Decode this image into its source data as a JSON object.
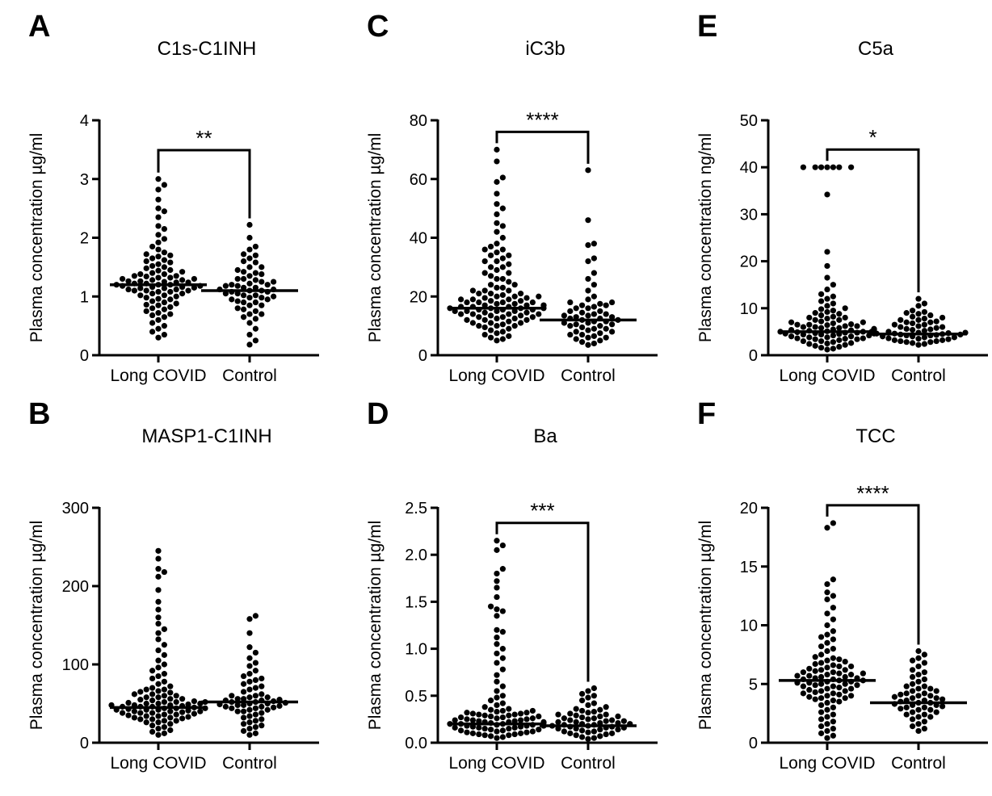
{
  "chart_data": [
    {
      "panel": "A",
      "type": "scatter",
      "title": "C1s-C1INH",
      "ylabel": "Plasma concentration µg/ml",
      "categories": [
        "Long COVID",
        "Control"
      ],
      "ylim": [
        0,
        4
      ],
      "yticks": [
        "0",
        "1",
        "2",
        "3",
        "4"
      ],
      "significance": "**",
      "series": [
        {
          "name": "Long COVID",
          "values": [
            3.0,
            2.9,
            2.82,
            2.65,
            2.5,
            2.45,
            2.35,
            2.2,
            2.15,
            2.05,
            1.98,
            1.92,
            1.85,
            1.8,
            1.72,
            1.68,
            1.62,
            1.58,
            1.52,
            1.48,
            1.45,
            1.42,
            1.38,
            1.35,
            1.32,
            1.3,
            1.28,
            1.26,
            1.24,
            1.22,
            1.2,
            1.18,
            1.16,
            1.14,
            1.12,
            1.1,
            1.08,
            1.05,
            1.02,
            1.0,
            0.98,
            0.95,
            0.92,
            0.9,
            0.88,
            0.85,
            0.82,
            0.78,
            0.75,
            0.7,
            0.65,
            0.6,
            0.55,
            0.5,
            0.45,
            0.4,
            0.35,
            0.3,
            1.2,
            1.25,
            1.3,
            1.15,
            1.1,
            1.35,
            1.4,
            1.05,
            1.22,
            1.18,
            1.28,
            1.12,
            1.38,
            1.08,
            1.44,
            1.02,
            0.96,
            1.5,
            1.55,
            0.86,
            1.6,
            0.8,
            1.65,
            1.7,
            0.72,
            1.75,
            0.68,
            1.24,
            1.16,
            1.32,
            1.2,
            1.26,
            1.14,
            1.1,
            1.34
          ],
          "median": 1.2
        },
        {
          "name": "Control",
          "values": [
            2.22,
            2.0,
            1.85,
            1.8,
            1.72,
            1.65,
            1.58,
            1.5,
            1.45,
            1.4,
            1.35,
            1.3,
            1.28,
            1.25,
            1.22,
            1.2,
            1.18,
            1.15,
            1.12,
            1.1,
            1.08,
            1.05,
            1.02,
            1.0,
            0.98,
            0.95,
            0.92,
            0.9,
            0.85,
            0.8,
            0.75,
            0.7,
            0.62,
            0.55,
            0.45,
            0.35,
            0.25,
            0.18,
            1.12,
            1.15,
            1.18,
            1.1,
            1.08,
            1.05,
            1.2,
            1.02,
            0.98,
            1.25,
            0.95,
            1.3,
            0.9,
            1.38,
            0.85,
            1.42,
            0.78,
            1.5,
            0.7,
            1.6,
            0.65,
            1.7
          ],
          "median": 1.1
        }
      ]
    },
    {
      "panel": "B",
      "type": "scatter",
      "title": "MASP1-C1INH",
      "ylabel": "Plasma concentration µg/ml",
      "categories": [
        "Long COVID",
        "Control"
      ],
      "ylim": [
        0,
        300
      ],
      "yticks": [
        "0",
        "100",
        "200",
        "300"
      ],
      "significance": "",
      "series": [
        {
          "name": "Long COVID",
          "values": [
            245,
            235,
            222,
            218,
            212,
            195,
            180,
            170,
            160,
            152,
            145,
            140,
            132,
            125,
            118,
            112,
            105,
            100,
            96,
            92,
            88,
            85,
            82,
            78,
            75,
            72,
            70,
            68,
            65,
            62,
            60,
            58,
            56,
            55,
            53,
            52,
            51,
            50,
            49,
            48,
            47,
            46,
            45,
            44,
            43,
            42,
            41,
            40,
            39,
            38,
            37,
            36,
            35,
            34,
            33,
            32,
            31,
            30,
            28,
            26,
            24,
            22,
            20,
            18,
            16,
            14,
            12,
            10,
            48,
            46,
            44,
            50,
            52,
            42,
            40,
            54,
            38,
            56,
            36,
            58,
            34,
            60,
            32,
            62,
            30,
            64,
            28,
            66,
            26,
            68,
            46,
            44,
            48,
            42,
            50,
            40,
            52,
            38
          ],
          "median": 45
        },
        {
          "name": "Control",
          "values": [
            162,
            158,
            140,
            122,
            115,
            108,
            102,
            98,
            92,
            88,
            85,
            82,
            80,
            78,
            75,
            72,
            70,
            68,
            65,
            62,
            60,
            58,
            56,
            55,
            54,
            53,
            52,
            51,
            50,
            49,
            48,
            47,
            46,
            45,
            44,
            42,
            40,
            38,
            36,
            34,
            32,
            30,
            28,
            26,
            24,
            22,
            20,
            18,
            15,
            12,
            10,
            52,
            50,
            48,
            54,
            46,
            56,
            44,
            58,
            42,
            60,
            40
          ],
          "median": 52
        }
      ]
    },
    {
      "panel": "C",
      "type": "scatter",
      "title": "iC3b",
      "ylabel": "Plasma concentration µg/ml",
      "categories": [
        "Long COVID",
        "Control"
      ],
      "ylim": [
        0,
        80
      ],
      "yticks": [
        "0",
        "20",
        "40",
        "60",
        "80"
      ],
      "significance": "****",
      "series": [
        {
          "name": "Long COVID",
          "values": [
            70,
            66,
            60.5,
            59,
            55,
            51.5,
            50,
            48,
            45,
            44,
            42,
            40,
            38,
            37,
            36,
            35,
            34,
            33,
            32,
            31,
            30,
            29,
            28,
            27,
            26,
            25,
            24,
            23,
            22,
            21,
            20.5,
            20,
            19.5,
            19,
            18.5,
            18,
            17.5,
            17,
            16.5,
            16,
            15.5,
            15,
            14.5,
            14,
            13.5,
            13,
            12.5,
            12,
            11.5,
            11,
            10.5,
            10,
            9.5,
            9,
            8.5,
            8,
            7.5,
            7,
            6.5,
            6,
            5.5,
            5,
            16,
            17,
            15,
            18,
            14,
            19,
            13,
            20,
            12,
            21,
            11,
            22,
            10,
            23,
            16.5,
            15.5,
            17.5,
            14.5,
            18.5,
            13.5,
            19.5,
            12.5,
            16,
            17,
            15,
            18,
            14,
            16,
            17,
            15,
            16.5,
            15.5,
            14,
            13,
            12,
            11,
            10,
            18,
            19,
            20,
            21,
            22,
            24,
            26,
            28,
            30,
            32,
            34,
            36
          ],
          "median": 16
        },
        {
          "name": "Control",
          "values": [
            63,
            46,
            38,
            37.5,
            33,
            32,
            28,
            26,
            24,
            22,
            20,
            19,
            18,
            17.5,
            17,
            16.5,
            16,
            15,
            14.5,
            14,
            13.5,
            13,
            12.5,
            12,
            11.5,
            11,
            10.5,
            10,
            9.5,
            9,
            8.5,
            8,
            7.5,
            7,
            6.5,
            6,
            5.5,
            5,
            4.5,
            4,
            3.5,
            12,
            13,
            11,
            14,
            10,
            15,
            9,
            16,
            8,
            17,
            7,
            18,
            6,
            12.5,
            11.5,
            13.5,
            10.5
          ],
          "median": 12
        }
      ]
    },
    {
      "panel": "D",
      "type": "scatter",
      "title": "Ba",
      "ylabel": "Plasma concentration µg/ml",
      "categories": [
        "Long COVID",
        "Control"
      ],
      "ylim": [
        0,
        2.5
      ],
      "yticks": [
        "0.0",
        "0.5",
        "1.0",
        "1.5",
        "2.0",
        "2.5"
      ],
      "significance": "***",
      "series": [
        {
          "name": "Long COVID",
          "values": [
            2.15,
            2.1,
            2.05,
            1.85,
            1.8,
            1.72,
            1.65,
            1.55,
            1.45,
            1.42,
            1.4,
            1.35,
            1.2,
            1.18,
            1.12,
            1.05,
            1.0,
            0.95,
            0.9,
            0.85,
            0.78,
            0.72,
            0.65,
            0.6,
            0.55,
            0.5,
            0.48,
            0.45,
            0.42,
            0.4,
            0.38,
            0.36,
            0.35,
            0.34,
            0.33,
            0.32,
            0.31,
            0.3,
            0.29,
            0.28,
            0.27,
            0.26,
            0.25,
            0.24,
            0.23,
            0.22,
            0.21,
            0.2,
            0.19,
            0.18,
            0.17,
            0.16,
            0.15,
            0.14,
            0.13,
            0.12,
            0.11,
            0.1,
            0.09,
            0.08,
            0.07,
            0.06,
            0.05,
            0.22,
            0.2,
            0.24,
            0.18,
            0.26,
            0.16,
            0.28,
            0.14,
            0.3,
            0.12,
            0.32,
            0.1,
            0.34,
            0.08,
            0.21,
            0.19,
            0.23,
            0.17,
            0.25,
            0.15,
            0.27,
            0.13,
            0.29,
            0.11,
            0.31,
            0.09,
            0.2,
            0.22,
            0.18,
            0.24,
            0.16
          ],
          "median": 0.2
        },
        {
          "name": "Control",
          "values": [
            0.58,
            0.55,
            0.52,
            0.5,
            0.48,
            0.45,
            0.42,
            0.4,
            0.38,
            0.36,
            0.35,
            0.34,
            0.33,
            0.32,
            0.31,
            0.3,
            0.29,
            0.28,
            0.27,
            0.26,
            0.25,
            0.24,
            0.23,
            0.22,
            0.21,
            0.2,
            0.19,
            0.18,
            0.17,
            0.16,
            0.15,
            0.14,
            0.13,
            0.12,
            0.11,
            0.1,
            0.09,
            0.08,
            0.07,
            0.06,
            0.05,
            0.04,
            0.2,
            0.18,
            0.22,
            0.16,
            0.24,
            0.14,
            0.26,
            0.12,
            0.28,
            0.1,
            0.3,
            0.19,
            0.21,
            0.17,
            0.23,
            0.15
          ],
          "median": 0.18
        }
      ]
    },
    {
      "panel": "E",
      "type": "scatter",
      "title": "C5a",
      "ylabel": "Plasma concentration ng/ml",
      "categories": [
        "Long COVID",
        "Control"
      ],
      "ylim": [
        0,
        50
      ],
      "yticks": [
        "0",
        "10",
        "20",
        "30",
        "40",
        "50"
      ],
      "significance": "*",
      "series": [
        {
          "name": "Long COVID",
          "values": [
            40,
            40,
            40,
            40,
            40,
            40,
            40,
            34.2,
            22,
            19,
            16.5,
            15,
            14,
            13,
            12.5,
            12,
            11.5,
            11,
            10.5,
            10,
            9.8,
            9.5,
            9.2,
            9,
            8.8,
            8.5,
            8.2,
            8,
            7.8,
            7.5,
            7.2,
            7,
            6.8,
            6.5,
            6.2,
            6,
            5.8,
            5.6,
            5.4,
            5.2,
            5,
            4.8,
            4.6,
            4.4,
            4.2,
            4,
            3.8,
            3.6,
            3.4,
            3.2,
            3,
            2.8,
            2.6,
            2.4,
            2.2,
            2,
            1.8,
            1.6,
            1.4,
            1.2,
            5,
            5.5,
            4.5,
            6,
            4,
            6.5,
            3.5,
            7,
            3,
            7.5,
            2.5,
            8,
            5.2,
            4.8,
            5.4,
            4.6,
            5.6,
            4.4,
            5.8,
            4.2,
            6.2,
            3.8,
            6.4,
            3.6,
            6.6,
            3.4,
            5.1,
            4.9,
            5.3,
            4.7,
            5.5
          ],
          "median": 5
        },
        {
          "name": "Control",
          "values": [
            12,
            11,
            10.5,
            9.5,
            9.2,
            9,
            8.8,
            8.5,
            8.2,
            8,
            7.8,
            7.5,
            7.2,
            7,
            6.8,
            6.5,
            6.2,
            6,
            5.8,
            5.6,
            5.4,
            5.2,
            5,
            4.8,
            4.6,
            4.4,
            4.2,
            4,
            3.8,
            3.6,
            3.4,
            3.2,
            3,
            2.8,
            2.6,
            2.4,
            2.2,
            4.5,
            4.8,
            4.2,
            5,
            4,
            5.5,
            3.8,
            6,
            3.5,
            6.5,
            3.2,
            7,
            3,
            7.5,
            2.8,
            4.6,
            4.4,
            4.7,
            4.3
          ],
          "median": 4.5
        }
      ]
    },
    {
      "panel": "F",
      "type": "scatter",
      "title": "TCC",
      "ylabel": "Plasma concentration µg/ml",
      "categories": [
        "Long COVID",
        "Control"
      ],
      "ylim": [
        0,
        20
      ],
      "yticks": [
        "0",
        "5",
        "10",
        "15",
        "20"
      ],
      "significance": "****",
      "series": [
        {
          "name": "Long COVID",
          "values": [
            18.7,
            18.3,
            13.9,
            13.5,
            12.8,
            12.5,
            12.2,
            11.5,
            11,
            10.5,
            10,
            9.5,
            9.2,
            9,
            8.8,
            8.5,
            8.2,
            8,
            7.8,
            7.5,
            7.2,
            7,
            6.8,
            6.5,
            6.2,
            6,
            5.8,
            5.6,
            5.4,
            5.2,
            5,
            4.8,
            4.6,
            4.4,
            4.2,
            4,
            3.8,
            3.6,
            3.4,
            3.2,
            3,
            2.8,
            2.6,
            2.4,
            2.2,
            2,
            1.8,
            1.6,
            1.4,
            1.2,
            1,
            0.8,
            0.6,
            0.4,
            5.3,
            5.5,
            5.1,
            5.7,
            4.9,
            5.9,
            4.7,
            6.1,
            4.5,
            6.3,
            4.3,
            6.5,
            4.1,
            6.7,
            3.9,
            6.9,
            3.7,
            7.1,
            3.5,
            7.3,
            5.2,
            5.4,
            5,
            5.6,
            4.8,
            5.8,
            4.6,
            6,
            4.4,
            6.2,
            4.2,
            6.4,
            4,
            6.6,
            3.8,
            5.3,
            5.5,
            5.1,
            5.7,
            4.9,
            5.9
          ],
          "median": 5.3
        },
        {
          "name": "Control",
          "values": [
            7.8,
            7.5,
            7.2,
            7,
            6.8,
            6.5,
            6.2,
            6,
            5.8,
            5.6,
            5.4,
            5.2,
            5,
            4.8,
            4.6,
            4.4,
            4.2,
            4,
            3.8,
            3.6,
            3.4,
            3.2,
            3,
            2.8,
            2.6,
            2.4,
            2.2,
            2,
            1.8,
            1.6,
            1.4,
            1.2,
            1,
            3.4,
            3.6,
            3.2,
            3.8,
            3,
            4,
            2.8,
            4.2,
            2.6,
            4.4,
            2.4,
            4.6,
            2.2,
            4.8,
            3.5,
            3.3,
            3.7,
            3.1,
            3.9,
            2.9,
            4.1
          ],
          "median": 3.4
        }
      ]
    }
  ]
}
